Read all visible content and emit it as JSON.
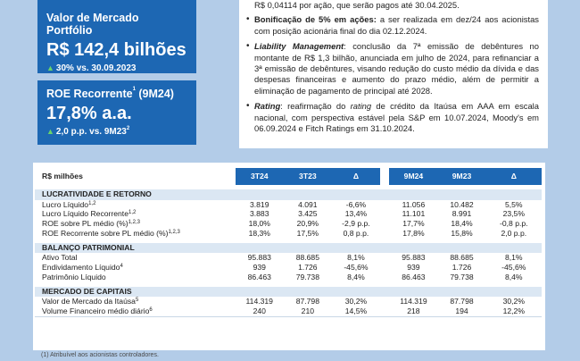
{
  "cards": [
    {
      "title": "Valor de Mercado Portfólio",
      "value": "R$ 142,4 bilhões",
      "delta": "30% vs. 30.09.2023"
    },
    {
      "title": "ROE Recorrente",
      "title_sup": "1",
      "title_suffix": " (9M24)",
      "value": "17,8% a.a.",
      "delta": "2,0 p.p. vs. 9M23",
      "delta_sup": "2"
    }
  ],
  "notes": {
    "first_line": "R$ 0,04114 por ação, que serão pagos até 30.04.2025.",
    "items": [
      {
        "lead": "Bonificação de 5% em ações:",
        "text": " a ser realizada em dez/24 aos acionistas com posição acionária final do dia 02.12.2024."
      },
      {
        "lead": "Liability Management",
        "text": ": conclusão da 7ª emissão de debêntures no montante de R$ 1,3 bilhão, anunciada em julho de 2024, para refinanciar a 3ª emissão de debêntures, visando redução do custo médio da dívida e das despesas financeiras e aumento do prazo médio, além de permitir a eliminação de pagamento de principal até 2028."
      },
      {
        "lead": "Rating",
        "text_a": ": reafirmação do ",
        "italic": "rating",
        "text_b": " de crédito da Itaúsa em AAA em escala nacional, com perspectiva estável pela S&P em 10.07.2024, Moody's em 06.09.2024 e Fitch Ratings em 31.10.2024."
      }
    ]
  },
  "table": {
    "unit_label": "R$ milhões",
    "columns": [
      "3T24",
      "3T23",
      "Δ",
      "9M24",
      "9M23",
      "Δ"
    ],
    "sections": [
      {
        "title": "LUCRATIVIDADE E RETORNO",
        "rows": [
          {
            "label": "Lucro Líquido",
            "sup": "1,2",
            "values": [
              "3.819",
              "4.091",
              "-6,6%",
              "11.056",
              "10.482",
              "5,5%"
            ]
          },
          {
            "label": "Lucro Líquido Recorrente",
            "sup": "1,2",
            "values": [
              "3.883",
              "3.425",
              "13,4%",
              "11.101",
              "8.991",
              "23,5%"
            ]
          },
          {
            "label": "ROE sobre PL médio (%)",
            "sup": "1,2,3",
            "values": [
              "18,0%",
              "20,9%",
              "-2,9 p.p.",
              "17,7%",
              "18,4%",
              "-0,8 p.p."
            ]
          },
          {
            "label": "ROE Recorrente sobre PL médio (%)",
            "sup": "1,2,3",
            "values": [
              "18,3%",
              "17,5%",
              "0,8 p.p.",
              "17,8%",
              "15,8%",
              "2,0 p.p."
            ]
          }
        ]
      },
      {
        "title": "BALANÇO PATRIMONIAL",
        "rows": [
          {
            "label": "Ativo Total",
            "sup": "",
            "values": [
              "95.883",
              "88.685",
              "8,1%",
              "95.883",
              "88.685",
              "8,1%"
            ]
          },
          {
            "label": "Endividamento Líquido",
            "sup": "4",
            "values": [
              "939",
              "1.726",
              "-45,6%",
              "939",
              "1.726",
              "-45,6%"
            ]
          },
          {
            "label": "Patrimônio Líquido",
            "sup": "",
            "values": [
              "86.463",
              "79.738",
              "8,4%",
              "86.463",
              "79.738",
              "8,4%"
            ]
          }
        ]
      },
      {
        "title": "MERCADO DE CAPITAIS",
        "rows": [
          {
            "label": "Valor de Mercado da Itaúsa",
            "sup": "5",
            "values": [
              "114.319",
              "87.798",
              "30,2%",
              "114.319",
              "87.798",
              "30,2%"
            ]
          },
          {
            "label": "Volume Financeiro médio diário",
            "sup": "6",
            "values": [
              "240",
              "210",
              "14,5%",
              "218",
              "194",
              "12,2%"
            ]
          }
        ]
      }
    ]
  },
  "footnote": "(1) Atribuível aos acionistas controladores."
}
